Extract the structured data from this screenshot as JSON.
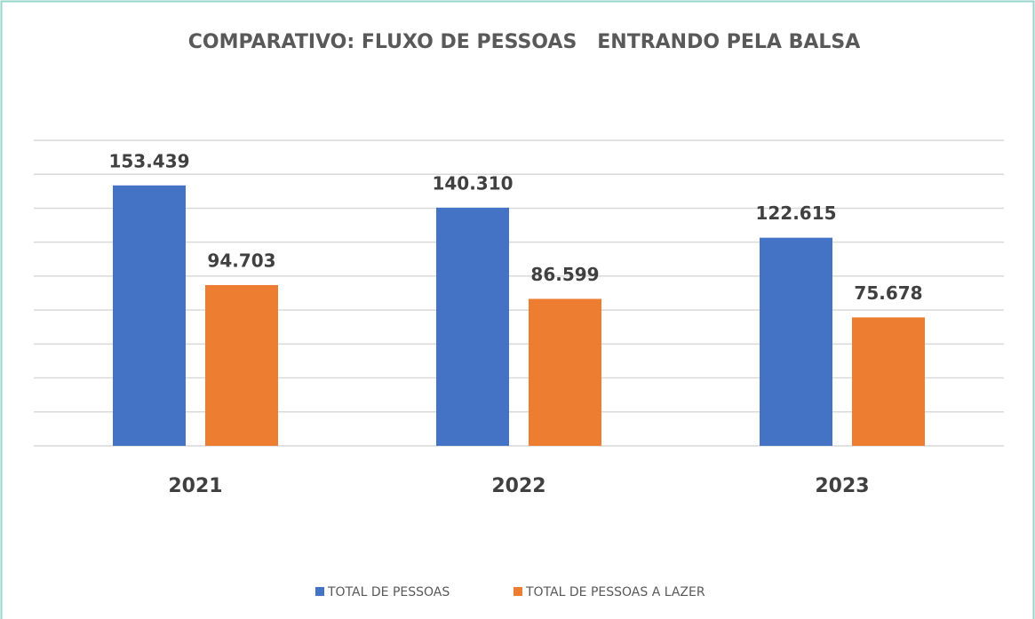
{
  "chart_data": {
    "type": "bar",
    "title": "COMPARATIVO: FLUXO DE PESSOAS   ENTRANDO PELA BALSA",
    "categories": [
      "2021",
      "2022",
      "2023"
    ],
    "series": [
      {
        "name": "TOTAL DE PESSOAS",
        "color": "#4472c4",
        "values": [
          153439,
          140310,
          122615
        ],
        "value_labels": [
          "153.439",
          "140.310",
          "122.615"
        ]
      },
      {
        "name": "TOTAL DE PESSOAS A LAZER",
        "color": "#ed7d31",
        "values": [
          94703,
          86599,
          75678
        ],
        "value_labels": [
          "94.703",
          "86.599",
          "75.678"
        ]
      }
    ],
    "ylim": [
      0,
      180000
    ],
    "yticks": [
      0,
      20000,
      40000,
      60000,
      80000,
      100000,
      120000,
      140000,
      160000,
      180000
    ],
    "grid": true,
    "legend": "bottom"
  }
}
